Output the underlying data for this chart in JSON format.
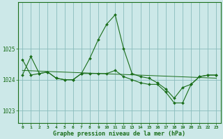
{
  "title": "Graphe pression niveau de la mer (hPa)",
  "bg_color": "#cce8e8",
  "grid_color": "#88bbbb",
  "line_color": "#1a6e1a",
  "marker_color": "#1a6e1a",
  "xlim": [
    -0.5,
    23.5
  ],
  "ylim": [
    1022.6,
    1026.5
  ],
  "yticks": [
    1023,
    1024,
    1025
  ],
  "xtick_labels": [
    "0",
    "1",
    "2",
    "3",
    "4",
    "5",
    "6",
    "7",
    "8",
    "9",
    "10",
    "11",
    "12",
    "13",
    "14",
    "15",
    "16",
    "17",
    "18",
    "19",
    "20",
    "21",
    "22",
    "23"
  ],
  "series": [
    {
      "x": [
        0,
        1,
        2,
        3,
        4,
        5,
        6,
        7,
        8,
        9,
        10,
        11,
        12,
        13,
        14,
        15,
        16,
        17,
        18,
        19,
        20,
        21,
        22,
        23
      ],
      "y": [
        1024.15,
        1024.75,
        1024.2,
        1024.25,
        1024.05,
        1024.0,
        1024.0,
        1024.2,
        1024.7,
        1025.3,
        1025.8,
        1026.1,
        1025.0,
        1024.2,
        1024.1,
        1024.05,
        1023.9,
        1023.7,
        1023.4,
        1023.75,
        1023.85,
        1024.1,
        1024.15,
        1024.15
      ]
    },
    {
      "x": [
        0,
        1,
        2,
        3,
        4,
        5,
        6,
        7,
        8,
        9,
        10,
        11,
        12,
        13,
        14,
        15,
        16,
        17,
        18,
        19,
        20,
        21,
        22,
        23
      ],
      "y": [
        1024.65,
        1024.15,
        1024.2,
        1024.25,
        1024.05,
        1024.0,
        1024.0,
        1024.2,
        1024.2,
        1024.2,
        1024.2,
        1024.3,
        1024.1,
        1024.0,
        1023.9,
        1023.85,
        1023.85,
        1023.6,
        1023.25,
        1023.25,
        1023.85,
        1024.1,
        1024.15,
        1024.15
      ]
    },
    {
      "x": [
        0,
        23
      ],
      "y": [
        1024.3,
        1024.05
      ]
    }
  ]
}
